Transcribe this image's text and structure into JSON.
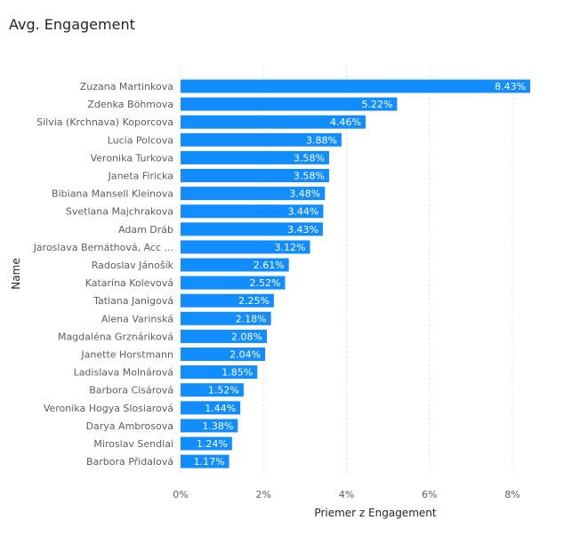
{
  "title": "Avg. Engagement",
  "colors": {
    "bar": "#118DFF",
    "label": "#ffffff"
  },
  "chart_data": {
    "type": "bar",
    "orientation": "horizontal",
    "title": "Avg. Engagement",
    "xlabel": "Priemer z Engagement",
    "ylabel": "Name",
    "xlim": [
      0,
      8.6
    ],
    "x_ticks": [
      0,
      2,
      4,
      6,
      8
    ],
    "x_tick_labels": [
      "0%",
      "2%",
      "4%",
      "6%",
      "8%"
    ],
    "grid": true,
    "categories": [
      "Zuzana Martinkova",
      "Zdenka Böhmova",
      "Silvia (Krchnava) Koporcova",
      "Lucia Polcova",
      "Veronika Turkova",
      "Janeta Firicka",
      "Bibiana Mansell Kleinova",
      "Svetlana Majchrakova",
      "Adam Dráb",
      "Jaroslava Bernáthová, Acc ...",
      "Radoslav Jánošík",
      "Katarína Kolevová",
      "Tatiana Janigová",
      "Alena Varinská",
      "Magdaléna Grznáriková",
      "Janette Horstmann",
      "Ladislava Molnárová",
      "Barbora Cisárová",
      "Veronika Hogya Slosiarová",
      "Darya Ambrosova",
      "Miroslav Sendlai",
      "Barbora Přidalová"
    ],
    "values": [
      8.43,
      5.22,
      4.46,
      3.88,
      3.58,
      3.58,
      3.48,
      3.44,
      3.43,
      3.12,
      2.61,
      2.52,
      2.25,
      2.18,
      2.08,
      2.04,
      1.85,
      1.52,
      1.44,
      1.38,
      1.24,
      1.17
    ],
    "value_labels": [
      "8.43%",
      "5.22%",
      "4.46%",
      "3.88%",
      "3.58%",
      "3.58%",
      "3.48%",
      "3.44%",
      "3.43%",
      "3.12%",
      "2.61%",
      "2.52%",
      "2.25%",
      "2.18%",
      "2.08%",
      "2.04%",
      "1.85%",
      "1.52%",
      "1.44%",
      "1.38%",
      "1.24%",
      "1.17%"
    ]
  }
}
